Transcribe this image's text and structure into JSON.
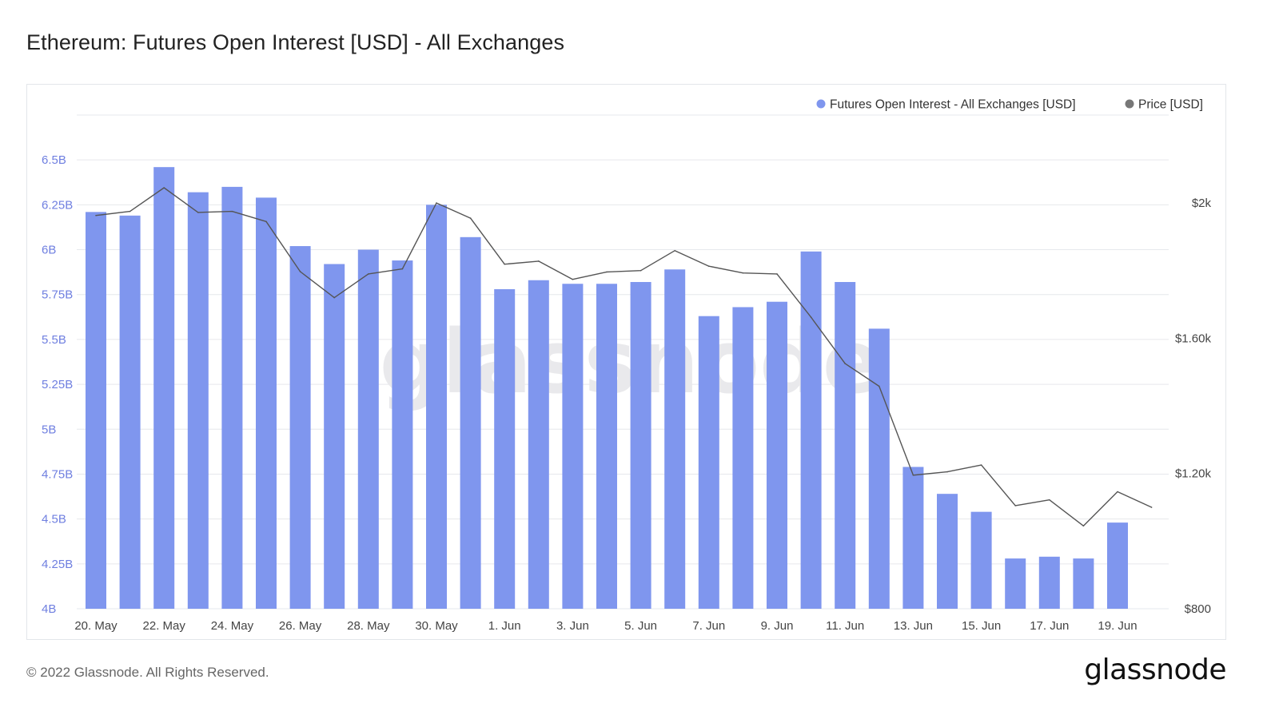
{
  "title": "Ethereum: Futures Open Interest [USD] - All Exchanges",
  "footer": {
    "copyright": "© 2022 Glassnode. All Rights Reserved.",
    "logo": "glassnode"
  },
  "watermark": "glassnode",
  "colors": {
    "bar": "#7f96ee",
    "price_line": "#555555",
    "price_legend_dot": "#777777",
    "left_axis_text": "#6f7fe0",
    "gridline": "#e6e8ec"
  },
  "chart_data": {
    "type": "bar",
    "legend_position": "top-right",
    "grid": true,
    "left_axis": {
      "ticks": [
        "4B",
        "4.25B",
        "4.5B",
        "4.75B",
        "5B",
        "5.25B",
        "5.5B",
        "5.75B",
        "6B",
        "6.25B",
        "6.5B"
      ],
      "tick_values": [
        4.0,
        4.25,
        4.5,
        4.75,
        5.0,
        5.25,
        5.5,
        5.75,
        6.0,
        6.25,
        6.5
      ],
      "ylim": [
        4.0,
        6.75
      ],
      "unit": "B USD"
    },
    "right_axis": {
      "ticks": [
        "$800",
        "$1.20k",
        "$1.60k",
        "$2k"
      ],
      "tick_values": [
        800,
        1200,
        1600,
        2000
      ],
      "ylim": [
        800,
        2260
      ]
    },
    "x_tick_labels": [
      {
        "index": 0,
        "label": "20. May"
      },
      {
        "index": 2,
        "label": "22. May"
      },
      {
        "index": 4,
        "label": "24. May"
      },
      {
        "index": 6,
        "label": "26. May"
      },
      {
        "index": 8,
        "label": "28. May"
      },
      {
        "index": 10,
        "label": "30. May"
      },
      {
        "index": 12,
        "label": "1. Jun"
      },
      {
        "index": 14,
        "label": "3. Jun"
      },
      {
        "index": 16,
        "label": "5. Jun"
      },
      {
        "index": 18,
        "label": "7. Jun"
      },
      {
        "index": 20,
        "label": "9. Jun"
      },
      {
        "index": 22,
        "label": "11. Jun"
      },
      {
        "index": 24,
        "label": "13. Jun"
      },
      {
        "index": 26,
        "label": "15. Jun"
      },
      {
        "index": 28,
        "label": "17. Jun"
      },
      {
        "index": 30,
        "label": "19. Jun"
      }
    ],
    "dates": [
      "2022-05-20",
      "2022-05-21",
      "2022-05-22",
      "2022-05-23",
      "2022-05-24",
      "2022-05-25",
      "2022-05-26",
      "2022-05-27",
      "2022-05-28",
      "2022-05-29",
      "2022-05-30",
      "2022-05-31",
      "2022-06-01",
      "2022-06-02",
      "2022-06-03",
      "2022-06-04",
      "2022-06-05",
      "2022-06-06",
      "2022-06-07",
      "2022-06-08",
      "2022-06-09",
      "2022-06-10",
      "2022-06-11",
      "2022-06-12",
      "2022-06-13",
      "2022-06-14",
      "2022-06-15",
      "2022-06-16",
      "2022-06-17",
      "2022-06-18",
      "2022-06-19",
      "2022-06-20"
    ],
    "series": [
      {
        "name": "Futures Open Interest - All Exchanges [USD]",
        "axis": "left",
        "type": "bar",
        "values": [
          6.21,
          6.19,
          6.46,
          6.32,
          6.35,
          6.29,
          6.02,
          5.92,
          6.0,
          5.94,
          6.25,
          6.07,
          5.78,
          5.83,
          5.81,
          5.81,
          5.82,
          5.89,
          5.63,
          5.68,
          5.71,
          5.99,
          5.82,
          5.56,
          4.79,
          4.64,
          4.54,
          4.28,
          4.29,
          4.28,
          4.48,
          null
        ]
      },
      {
        "name": "Price [USD]",
        "axis": "right",
        "type": "line",
        "values": [
          1963,
          1975,
          2045,
          1972,
          1975,
          1945,
          1797,
          1720,
          1790,
          1805,
          2000,
          1955,
          1819,
          1828,
          1774,
          1796,
          1800,
          1859,
          1813,
          1793,
          1790,
          1662,
          1525,
          1458,
          1195,
          1205,
          1225,
          1105,
          1122,
          1045,
          1146,
          1100
        ]
      }
    ]
  }
}
